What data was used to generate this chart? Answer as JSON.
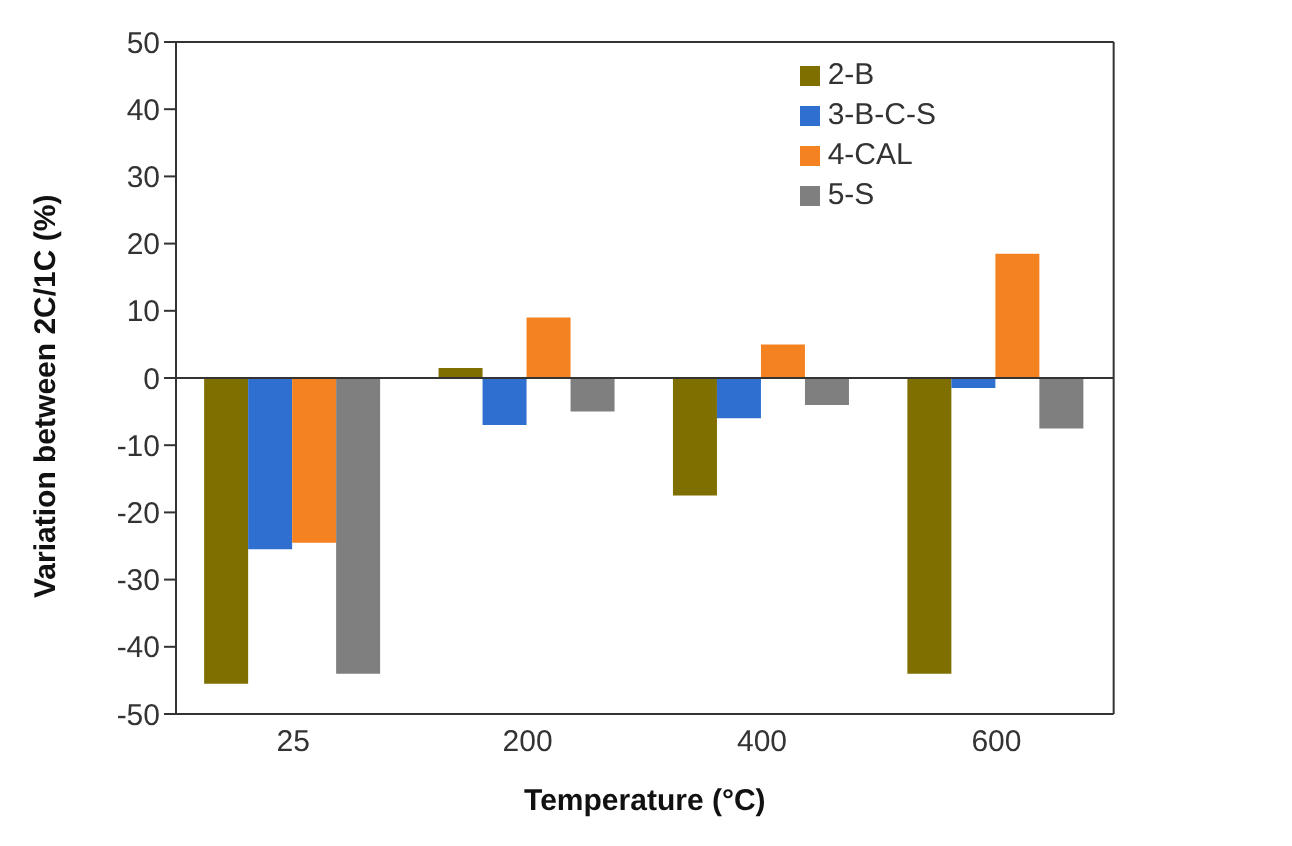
{
  "chart_data": {
    "type": "bar",
    "xlabel": "Temperature (°C)",
    "ylabel": "Variation between 2C/1C (%)",
    "categories": [
      "25",
      "200",
      "400",
      "600"
    ],
    "series": [
      {
        "name": "2-B",
        "color": "#7f6f00",
        "values": [
          -45.5,
          1.5,
          -17.5,
          -44
        ]
      },
      {
        "name": "3-B-C-S",
        "color": "#2f6fd0",
        "values": [
          -25.5,
          -7,
          -6,
          -1.5
        ]
      },
      {
        "name": "4-CAL",
        "color": "#f58220",
        "values": [
          -24.5,
          9,
          5,
          18.5
        ]
      },
      {
        "name": "5-S",
        "color": "#7f7f7f",
        "values": [
          -44,
          -5,
          -4,
          -7.5
        ]
      }
    ],
    "ylim": [
      -50,
      50
    ],
    "yticks": [
      -50,
      -40,
      -30,
      -20,
      -10,
      0,
      10,
      20,
      30,
      40,
      50
    ],
    "ref_lines": [
      {
        "axis": "y",
        "value": 0
      }
    ],
    "legend": "top right"
  }
}
